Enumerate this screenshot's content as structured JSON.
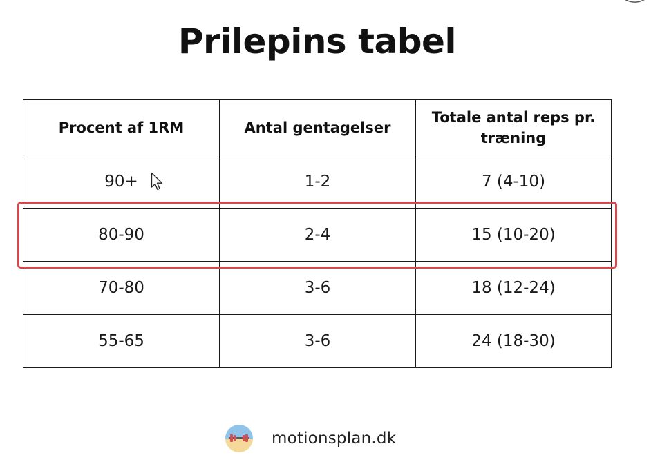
{
  "title": "Prilepins tabel",
  "table": {
    "headers": [
      "Procent af 1RM",
      "Antal gentagelser",
      "Totale antal reps pr. træning"
    ],
    "rows": [
      [
        "90+",
        "1-2",
        "7 (4-10)"
      ],
      [
        "80-90",
        "2-4",
        "15 (10-20)"
      ],
      [
        "70-80",
        "3-6",
        "18 (12-24)"
      ],
      [
        "55-65",
        "3-6",
        "24 (18-30)"
      ]
    ],
    "highlighted_row": 1
  },
  "footer": {
    "site": "motionsplan.dk",
    "logo_icon": "barbell-logo-icon"
  },
  "colors": {
    "highlight": "#d9474c",
    "text": "#111111",
    "logo_top": "#8fc3ea",
    "logo_bottom": "#f5d99a"
  }
}
